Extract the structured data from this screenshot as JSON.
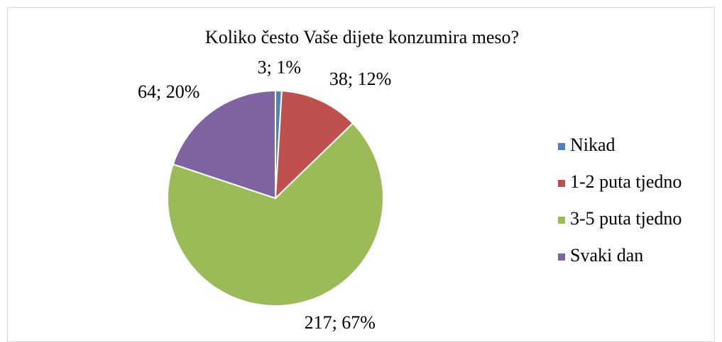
{
  "chart_data": {
    "type": "pie",
    "title": "Koliko često Vaše dijete konzumira meso?",
    "categories": [
      "Nikad",
      "1-2 puta tjedno",
      "3-5 puta tjedno",
      "Svaki dan"
    ],
    "values": [
      3,
      38,
      217,
      64
    ],
    "value_labels": [
      "3; 1%",
      "38; 12%",
      "217; 67%",
      "64; 20%"
    ],
    "colors": [
      "#4f81bd",
      "#c0504d",
      "#9bbb59",
      "#8064a2"
    ],
    "legend": "right"
  }
}
